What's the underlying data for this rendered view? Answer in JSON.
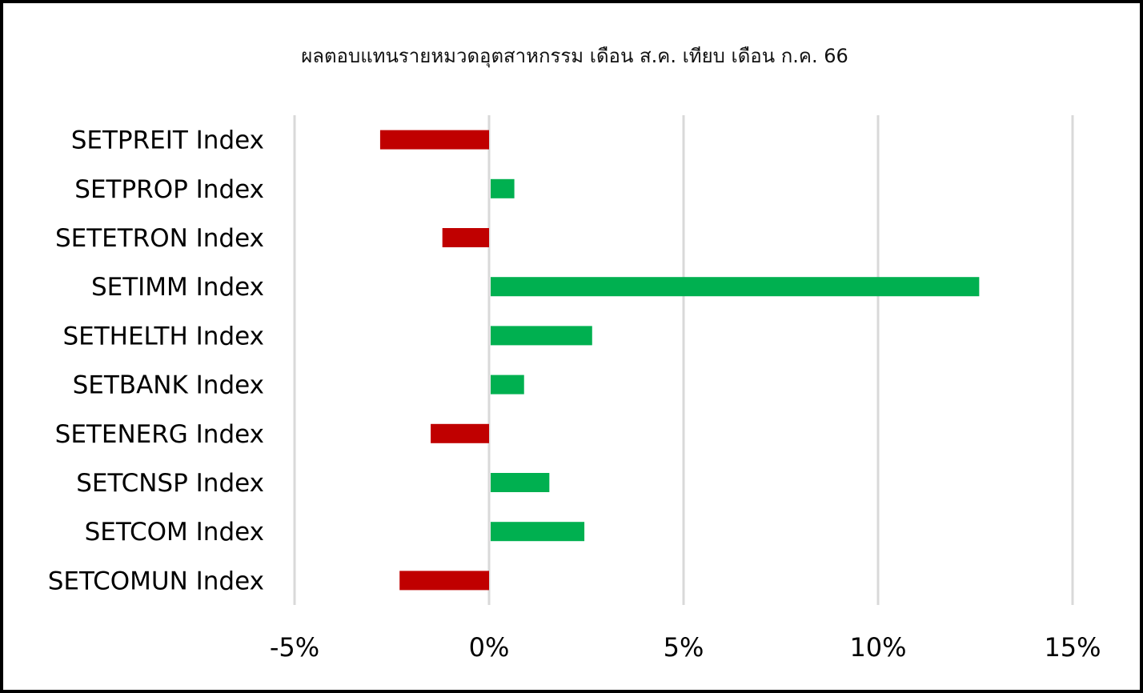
{
  "chart_data": {
    "type": "bar",
    "orientation": "horizontal",
    "title": "ผลตอบแทนรายหมวดอุตสาหกรรม เดือน ส.ค. เทียบ เดือน ก.ค. 66",
    "categories": [
      "SETPREIT Index",
      "SETPROP Index",
      "SETETRON Index",
      "SETIMM Index",
      "SETHELTH Index",
      "SETBANK Index",
      "SETENERG Index",
      "SETCNSP Index",
      "SETCOM Index",
      "SETCOMUN Index"
    ],
    "values": [
      -2.8,
      0.65,
      -1.2,
      12.6,
      2.65,
      0.9,
      -1.5,
      1.55,
      2.45,
      -2.3
    ],
    "xlim": [
      -5,
      15
    ],
    "ticks": [
      -5,
      0,
      5,
      10,
      15
    ],
    "tick_labels": [
      "-5%",
      "0%",
      "5%",
      "10%",
      "15%"
    ],
    "xlabel": "",
    "ylabel": "",
    "grid": true,
    "legend": "none",
    "colors": {
      "positive": "#00B050",
      "negative": "#C00000",
      "grid": "#D9D9D9"
    }
  }
}
